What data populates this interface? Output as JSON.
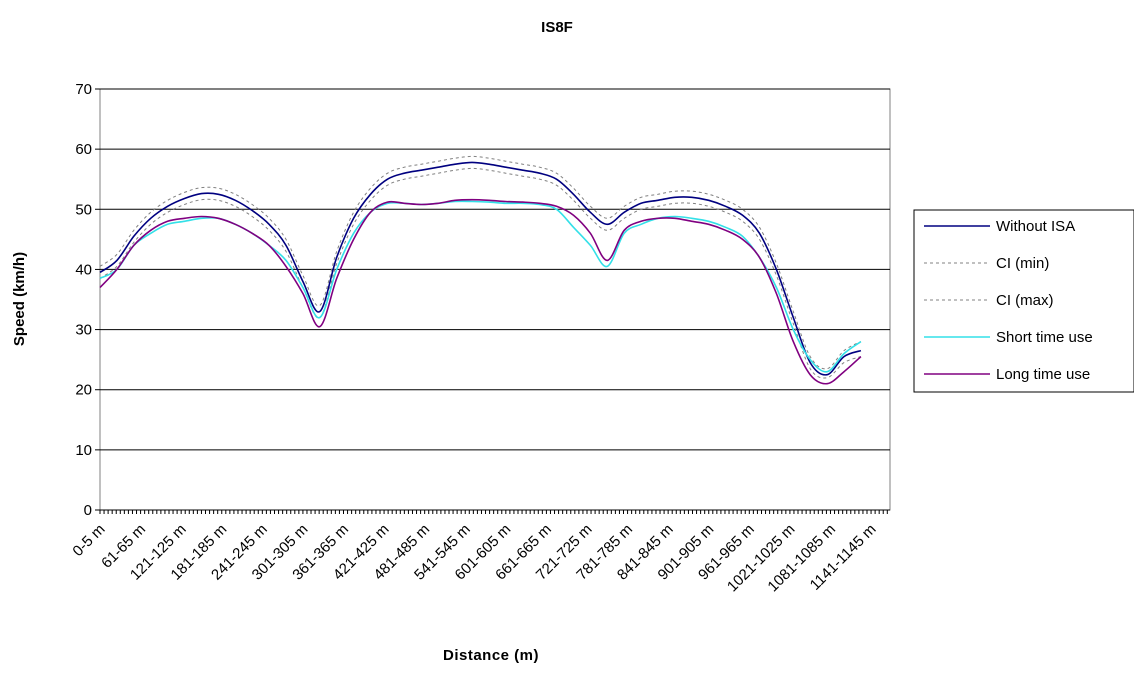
{
  "chart_data": {
    "type": "line",
    "title": "IS8F",
    "xlabel": "Distance (m)",
    "ylabel": "Speed (km/h)",
    "ylim": [
      0,
      70
    ],
    "yticks": [
      0,
      10,
      20,
      30,
      40,
      50,
      60,
      70
    ],
    "grid": "horizontal",
    "legend_position": "right",
    "x_tick_labels": [
      "0-5 m",
      "61-65 m",
      "121-125 m",
      "181-185 m",
      "241-245 m",
      "301-305 m",
      "361-365 m",
      "421-425 m",
      "481-485 m",
      "541-545 m",
      "601-605 m",
      "661-665 m",
      "721-725 m",
      "781-785 m",
      "841-845 m",
      "901-905 m",
      "961-965 m",
      "1021-1025 m",
      "1081-1085 m",
      "1141-1145 m"
    ],
    "x_sample_start_m": [
      0,
      25,
      50,
      75,
      100,
      125,
      150,
      175,
      200,
      225,
      250,
      275,
      300,
      325,
      350,
      375,
      400,
      425,
      450,
      475,
      500,
      525,
      550,
      575,
      600,
      625,
      650,
      675,
      700,
      725,
      750,
      775,
      800,
      825,
      850,
      875,
      900,
      925,
      950,
      975,
      1000,
      1025,
      1050,
      1075,
      1100,
      1125,
      1135,
      1145,
      1155,
      1165
    ],
    "series": [
      {
        "name": "Without ISA",
        "color": "#000080",
        "dash": "solid",
        "values": [
          39.5,
          41.5,
          45.5,
          48.5,
          50.5,
          51.8,
          52.6,
          52.5,
          51.5,
          49.8,
          47.5,
          44,
          38,
          33,
          42,
          48.5,
          52.5,
          55,
          56,
          56.5,
          57,
          57.5,
          57.8,
          57.5,
          57,
          56.5,
          56,
          55,
          52.5,
          49.5,
          47.5,
          49.5,
          51,
          51.5,
          52,
          52,
          51.5,
          50.5,
          49,
          46,
          40,
          32,
          24.5,
          22.5,
          25.5,
          26.5,
          null,
          null,
          null,
          null
        ]
      },
      {
        "name": "CI (min)",
        "color": "#808080",
        "dash": "dotted",
        "values": [
          38.5,
          40.5,
          44.5,
          47.5,
          49.5,
          50.8,
          51.6,
          51.5,
          50.5,
          48.8,
          46.5,
          43,
          37,
          32,
          41,
          47.5,
          51.5,
          54,
          55,
          55.5,
          56,
          56.5,
          56.8,
          56.5,
          56,
          55.5,
          55,
          54,
          51.5,
          48.5,
          46.5,
          48.5,
          50,
          50.5,
          51,
          51,
          50.5,
          49.5,
          48,
          45,
          39,
          31,
          23.5,
          22,
          24.5,
          25.5,
          null,
          null,
          null,
          null
        ]
      },
      {
        "name": "CI (max)",
        "color": "#808080",
        "dash": "dotted",
        "values": [
          40.5,
          42.5,
          46.5,
          49.5,
          51.5,
          52.8,
          53.6,
          53.5,
          52.5,
          50.8,
          48.5,
          45,
          39,
          34,
          43,
          49.5,
          53.5,
          56,
          57,
          57.5,
          58,
          58.5,
          58.8,
          58.5,
          58,
          57.5,
          57,
          56,
          53.5,
          50.5,
          48.5,
          50.5,
          52,
          52.5,
          53,
          53,
          52.5,
          51.5,
          50,
          47,
          41,
          33,
          25.5,
          23.5,
          26.5,
          28,
          null,
          null,
          null,
          null
        ]
      },
      {
        "name": "Short time use",
        "color": "#33e0e8",
        "dash": "solid",
        "values": [
          38.5,
          40,
          44,
          46,
          47.5,
          48,
          48.5,
          48.5,
          47.5,
          46,
          44,
          41.5,
          37,
          32,
          40,
          46,
          49.5,
          51,
          51,
          50.8,
          51,
          51.3,
          51.3,
          51.2,
          51,
          51,
          50.8,
          50,
          47,
          44,
          40.5,
          46,
          47.5,
          48.5,
          48.8,
          48.5,
          48,
          47,
          45.5,
          42,
          37,
          30,
          25,
          23,
          26,
          28,
          null,
          null,
          null,
          null
        ]
      },
      {
        "name": "Long time use",
        "color": "#800080",
        "dash": "solid",
        "values": [
          37,
          40,
          44,
          46.5,
          48,
          48.5,
          48.8,
          48.5,
          47.5,
          46,
          44,
          40.5,
          36,
          30.5,
          38.5,
          45,
          49.5,
          51.2,
          51,
          50.8,
          51,
          51.5,
          51.6,
          51.5,
          51.3,
          51.2,
          51,
          50.5,
          49,
          46,
          41.5,
          46.5,
          48,
          48.5,
          48.5,
          48,
          47.5,
          46.5,
          45,
          42,
          36,
          28,
          22.5,
          21,
          23,
          25.5,
          null,
          null,
          null,
          null
        ]
      }
    ]
  }
}
